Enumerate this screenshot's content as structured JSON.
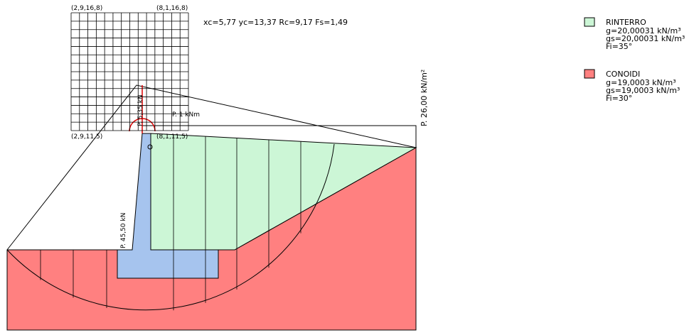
{
  "grid_labels": {
    "top_left": "(2,9,16,8)",
    "top_right": "(8,1,16,8)",
    "bottom_left": "(2,9,11,5)",
    "bottom_right": "(8,1,11,5)"
  },
  "result": "xc=5,77 yc=13,37 Rc=9,17 Fs=1,49",
  "loads": {
    "wall_top": "P. 5,35 kN",
    "moment": "P. 1  kNm",
    "surcharge": "P. 26,00 kN/m²",
    "wall_face": "P. 45,50 kN"
  },
  "legend": [
    {
      "name": "RINTERRO",
      "lines": [
        "g=20,00031 kN/m³",
        "gs=20,00031 kN/m³",
        "Fi=35°"
      ]
    },
    {
      "name": "CONOIDI",
      "lines": [
        "g=19,0003 kN/m³",
        "gs=19,0003 kN/m³",
        "Fi=30°"
      ]
    }
  ]
}
